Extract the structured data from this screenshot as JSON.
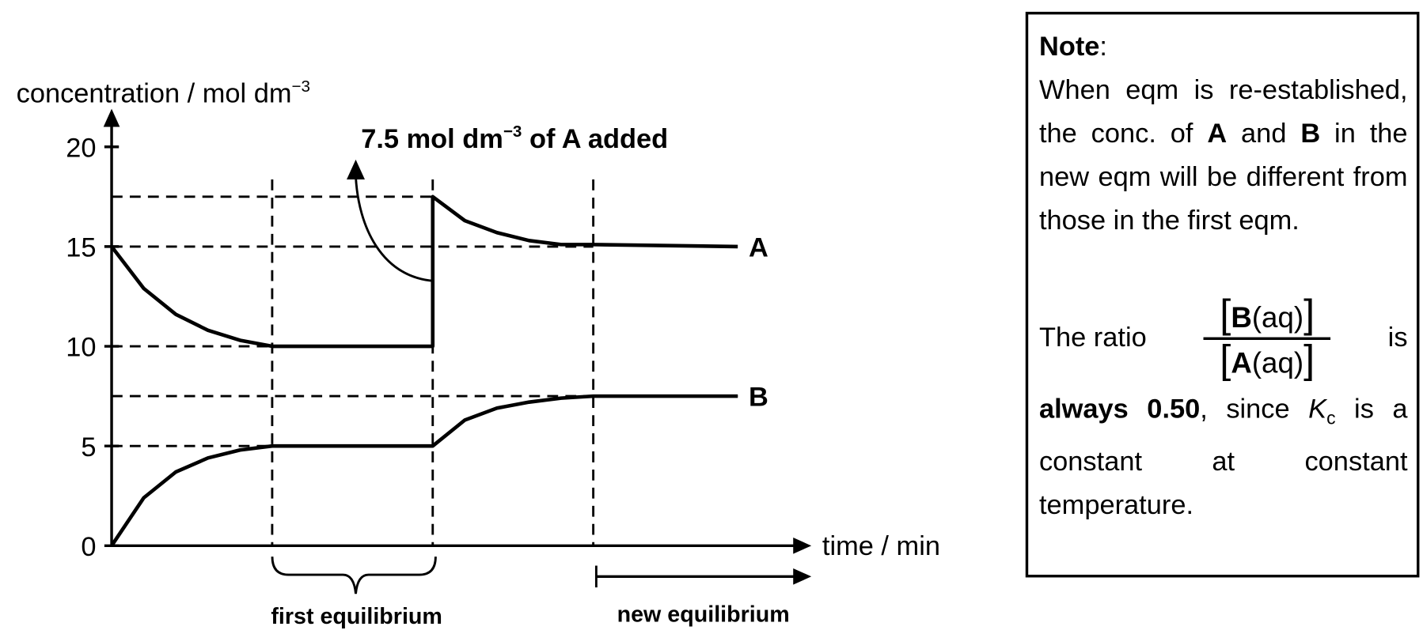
{
  "chart_data": {
    "type": "line",
    "y_label": {
      "text": "concentration / mol dm",
      "superscript": "−3"
    },
    "x_label": "time / min",
    "annotation": {
      "text": "7.5 mol dm",
      "superscript": "−3",
      "text_after": " of A added"
    },
    "xlim": [
      0,
      21
    ],
    "ylim": [
      0,
      20
    ],
    "yticks": [
      0,
      5,
      10,
      15,
      20
    ],
    "series": [
      {
        "name": "A",
        "color": "#000000",
        "x": [
          0,
          1,
          2,
          3,
          4,
          5,
          10,
          10,
          11,
          12,
          13,
          14,
          15,
          19.5
        ],
        "values": [
          15,
          12.9,
          11.6,
          10.8,
          10.3,
          10,
          10,
          17.5,
          16.3,
          15.7,
          15.3,
          15.1,
          15.1,
          15
        ]
      },
      {
        "name": "B",
        "color": "#000000",
        "x": [
          0,
          1,
          2,
          3,
          4,
          5,
          10,
          11,
          12,
          13,
          14,
          15,
          19.5
        ],
        "values": [
          0,
          2.4,
          3.7,
          4.4,
          4.8,
          5,
          5,
          6.3,
          6.9,
          7.2,
          7.4,
          7.5,
          7.5
        ]
      }
    ],
    "brackets": [
      "first equilibrium",
      "new equilibrium"
    ]
  },
  "note": {
    "heading": "Note",
    "heading_suffix": ":",
    "paragraph1": [
      "When eqm is re-established, the conc. of ",
      "A",
      " and ",
      "B",
      " in the new eqm will be different from those in the first eqm."
    ],
    "ratio_intro": "The ratio",
    "numerator": [
      "B",
      "(aq)"
    ],
    "denominator": [
      "A",
      "(aq)"
    ],
    "ratio_verb": "is",
    "paragraph2": [
      "always 0.50",
      ", since ",
      "K",
      "c",
      " is a constant at constant temperature."
    ]
  }
}
